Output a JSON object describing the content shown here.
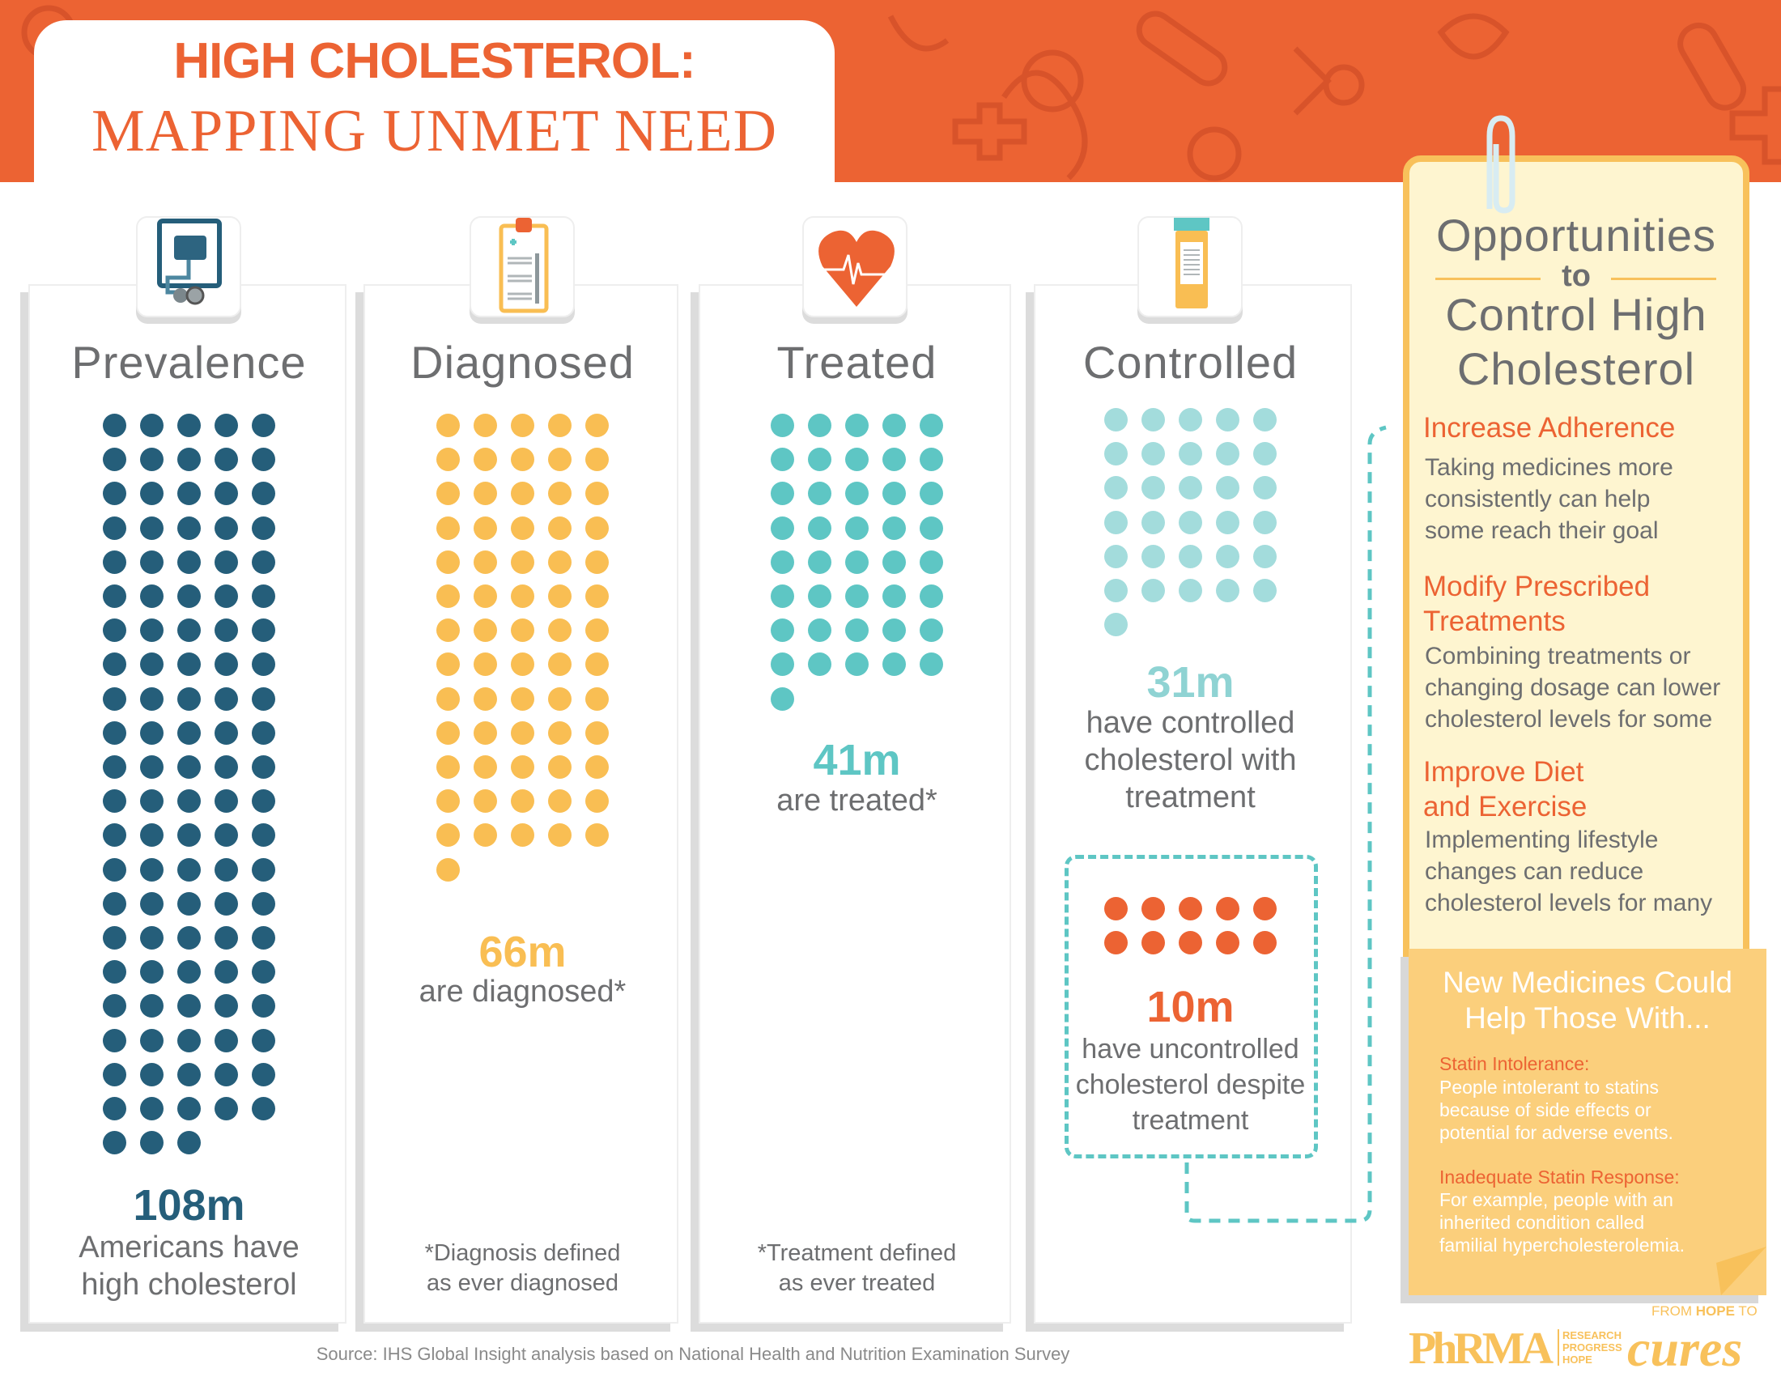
{
  "title": {
    "line1": "HIGH CHOLESTEROL:",
    "line2": "MAPPING UNMET NEED"
  },
  "columns": [
    {
      "heading": "Prevalence",
      "icon": "blood-pressure-monitor-icon",
      "value_millions": 108,
      "value_label": "108m",
      "color": "#255e7a",
      "description_lines": [
        "Americans have",
        "high cholesterol"
      ],
      "footnote_lines": []
    },
    {
      "heading": "Diagnosed",
      "icon": "clipboard-icon",
      "value_millions": 66,
      "value_label": "66m",
      "color": "#f9be53",
      "description_lines": [
        "are diagnosed*"
      ],
      "footnote_lines": [
        "*Diagnosis defined",
        "as ever diagnosed"
      ]
    },
    {
      "heading": "Treated",
      "icon": "heartbeat-icon",
      "value_millions": 41,
      "value_label": "41m",
      "color": "#5ec6c4",
      "description_lines": [
        "are treated*"
      ],
      "footnote_lines": [
        "*Treatment defined",
        "as ever treated"
      ]
    },
    {
      "heading": "Controlled",
      "icon": "pill-bottle-icon",
      "value_millions": 31,
      "value_label": "31m",
      "color": "#a3dcdc",
      "label_color": "#8fd3d3",
      "description_lines": [
        "have controlled",
        "cholesterol with",
        "treatment"
      ],
      "footnote_lines": []
    }
  ],
  "uncontrolled": {
    "value_millions": 10,
    "value_label": "10m",
    "color": "#ec6333",
    "description_lines": [
      "have uncontrolled",
      "cholesterol despite",
      "treatment"
    ]
  },
  "opportunities": {
    "title_line1": "Opportunities",
    "to": "to",
    "title_line2": "Control High",
    "title_line3": "Cholesterol",
    "items": [
      {
        "heading_lines": [
          "Increase Adherence"
        ],
        "body_lines": [
          "Taking medicines more",
          "consistently can help",
          "some reach their goal"
        ]
      },
      {
        "heading_lines": [
          "Modify Prescribed",
          "Treatments"
        ],
        "body_lines": [
          "Combining treatments or",
          "changing dosage can lower",
          "cholesterol levels for some"
        ]
      },
      {
        "heading_lines": [
          "Improve Diet",
          "and Exercise"
        ],
        "body_lines": [
          "Implementing lifestyle",
          "changes can reduce",
          "cholesterol levels for many"
        ]
      }
    ]
  },
  "new_medicines": {
    "title_lines": [
      "New Medicines Could",
      "Help Those With..."
    ],
    "items": [
      {
        "heading": "Statin Intolerance:",
        "body_lines": [
          "People intolerant to statins",
          "because of side effects or",
          "potential for adverse events."
        ]
      },
      {
        "heading": "Inadequate Statin Response:",
        "body_lines": [
          "For example, people with an",
          "inherited condition called",
          "familial hypercholesterolemia."
        ]
      }
    ]
  },
  "source": "Source: IHS Global Insight analysis based on National Health and Nutrition Examination Survey",
  "logos": {
    "phrma": "PhRMA",
    "phrma_tag": [
      "RESEARCH",
      "PROGRESS",
      "HOPE"
    ],
    "cures_top_1": "FROM",
    "cures_top_2": "HOPE",
    "cures_top_3": "TO",
    "cures": "cures"
  },
  "colors": {
    "brand_orange": "#ec6333",
    "prevalence": "#255e7a",
    "diagnosed": "#f9be53",
    "treated": "#5ec6c4",
    "controlled": "#a3dcdc",
    "panel_fill": "#fef5d0",
    "panel_border": "#f8c15b",
    "note_fill": "#fbcf7c"
  }
}
